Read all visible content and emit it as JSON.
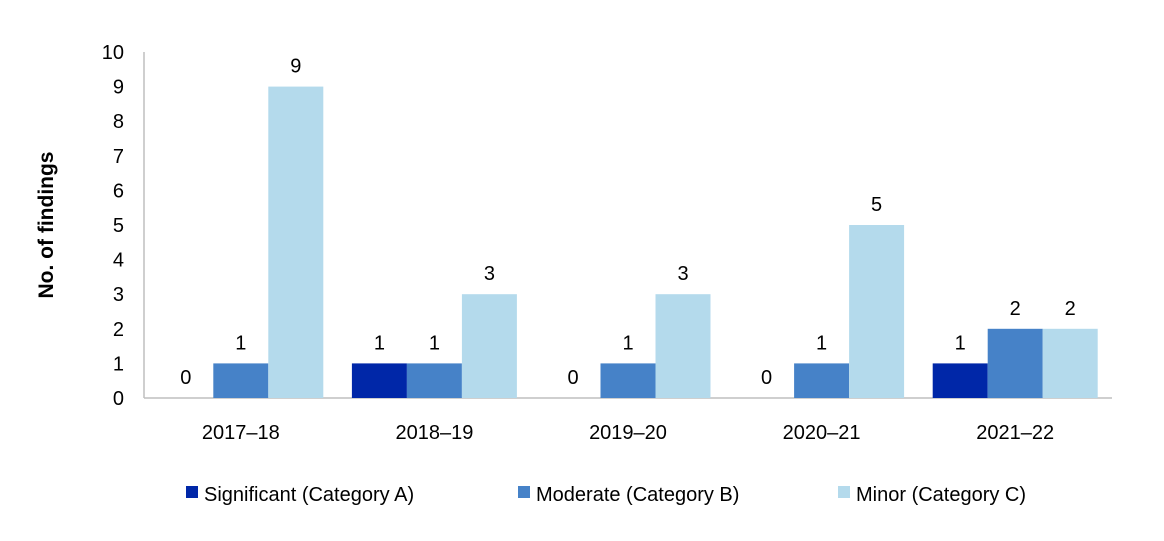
{
  "chart_data": {
    "type": "bar",
    "title": "",
    "xlabel": "",
    "ylabel": "No. of findings",
    "ylim": [
      0,
      10
    ],
    "yticks": [
      0,
      1,
      2,
      3,
      4,
      5,
      6,
      7,
      8,
      9,
      10
    ],
    "grid": false,
    "legend_position": "bottom",
    "categories": [
      "2017–18",
      "2018–19",
      "2019–20",
      "2020–21",
      "2021–22"
    ],
    "series": [
      {
        "name": "Significant (Category A)",
        "color": "#0027A8",
        "values": [
          0,
          1,
          0,
          0,
          1
        ]
      },
      {
        "name": "Moderate (Category B)",
        "color": "#4682C8",
        "values": [
          1,
          1,
          1,
          1,
          2
        ]
      },
      {
        "name": "Minor (Category C)",
        "color": "#B4DAEC",
        "values": [
          9,
          3,
          3,
          5,
          2
        ]
      }
    ]
  }
}
